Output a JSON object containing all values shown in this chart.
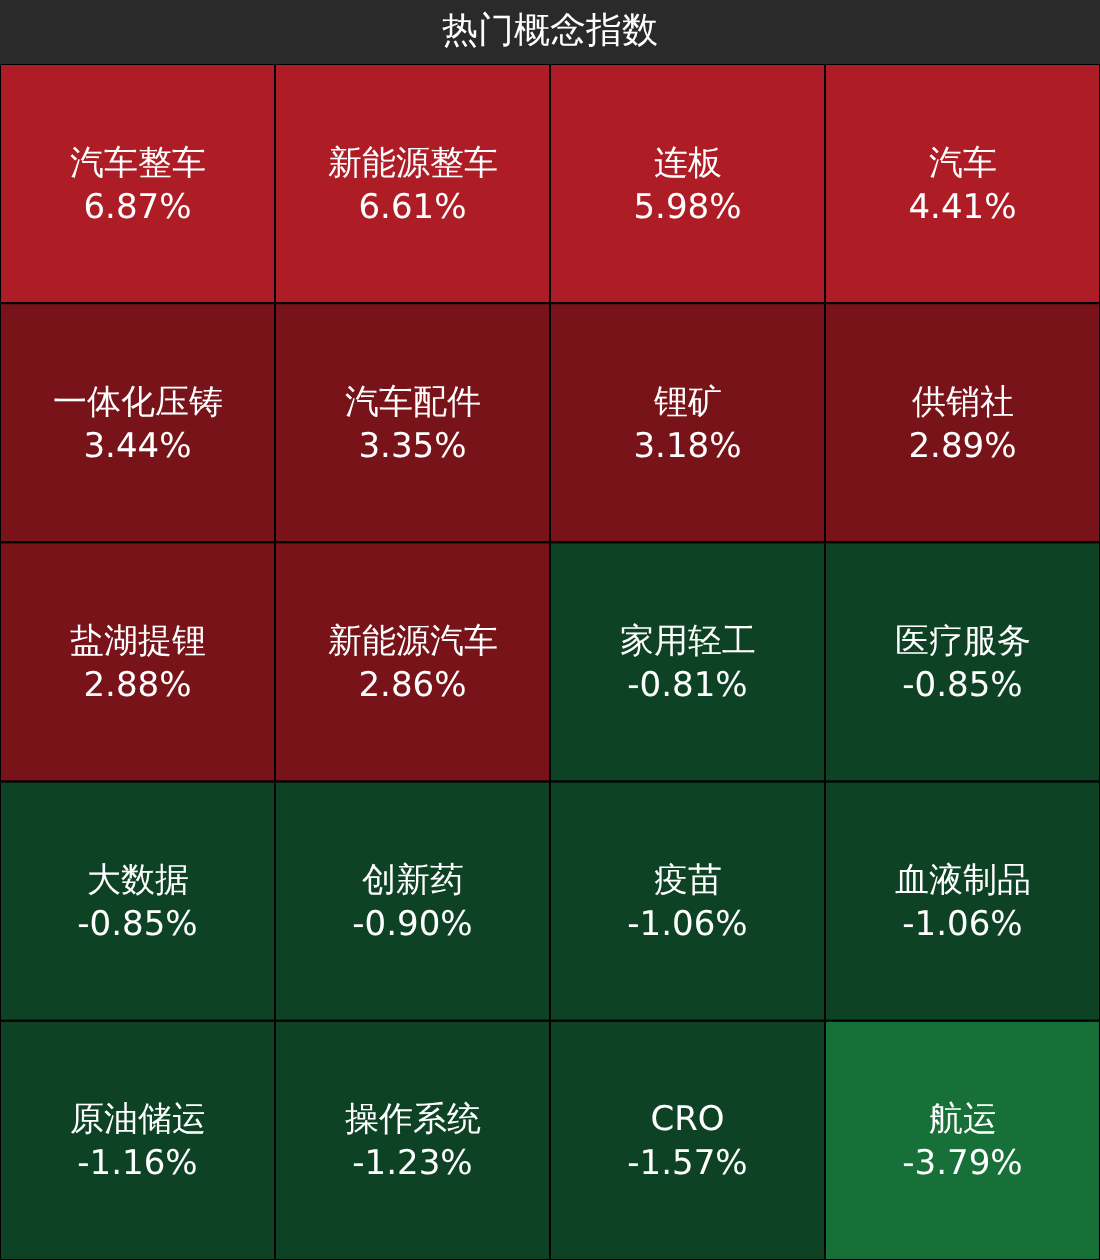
{
  "chart_data": {
    "type": "other",
    "title": "热门概念指数",
    "categories": [
      "汽车整车",
      "新能源整车",
      "连板",
      "汽车",
      "一体化压铸",
      "汽车配件",
      "锂矿",
      "供销社",
      "盐湖提锂",
      "新能源汽车",
      "家用轻工",
      "医疗服务",
      "大数据",
      "创新药",
      "疫苗",
      "血液制品",
      "原油储运",
      "操作系统",
      "CRO",
      "航运"
    ],
    "values": [
      6.87,
      6.61,
      5.98,
      4.41,
      3.44,
      3.35,
      3.18,
      2.89,
      2.88,
      2.86,
      -0.81,
      -0.85,
      -0.85,
      -0.9,
      -1.06,
      -1.06,
      -1.16,
      -1.23,
      -1.57,
      -3.79
    ],
    "value_labels": [
      "6.87%",
      "6.61%",
      "5.98%",
      "4.41%",
      "3.44%",
      "3.35%",
      "3.18%",
      "2.89%",
      "2.88%",
      "2.86%",
      "-0.81%",
      "-0.85%",
      "-0.85%",
      "-0.90%",
      "-1.06%",
      "-1.06%",
      "-1.16%",
      "-1.23%",
      "-1.57%",
      "-3.79%"
    ]
  }
}
